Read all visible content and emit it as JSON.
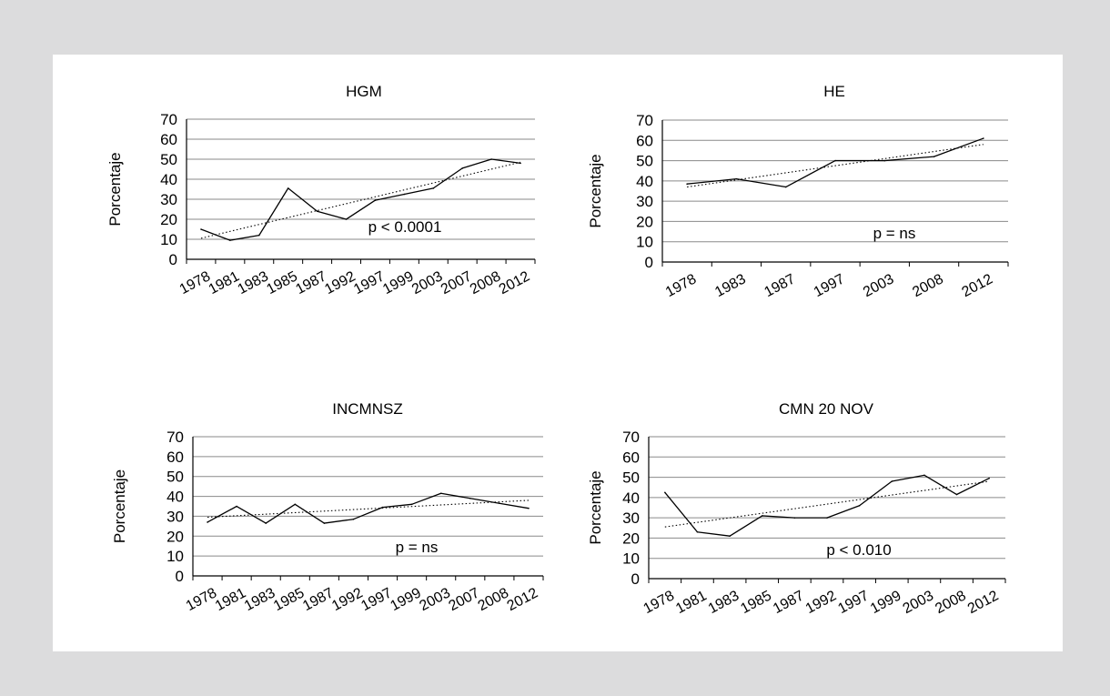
{
  "chart_data": [
    {
      "type": "line",
      "title": "HGM",
      "ylabel": "Porcentaje",
      "xlabel": "",
      "ylim": [
        0,
        70
      ],
      "yticks": [
        0,
        10,
        20,
        30,
        40,
        50,
        60,
        70
      ],
      "categories": [
        "1978",
        "1981",
        "1983",
        "1985",
        "1987",
        "1992",
        "1997",
        "1999",
        "2003",
        "2007",
        "2008",
        "2012"
      ],
      "values": [
        15,
        9.5,
        12,
        35.5,
        24,
        20,
        29.5,
        32.5,
        35.5,
        45.5,
        50,
        48
      ],
      "trendline": [
        10.5,
        48.5
      ],
      "annotation": "p < 0.0001",
      "grid": true
    },
    {
      "type": "line",
      "title": "HE",
      "ylabel": "Porcentaje",
      "xlabel": "",
      "ylim": [
        0,
        70
      ],
      "yticks": [
        0,
        10,
        20,
        30,
        40,
        50,
        60,
        70
      ],
      "categories": [
        "1978",
        "1983",
        "1987",
        "1997",
        "2003",
        "2008",
        "2012"
      ],
      "values": [
        38.5,
        41,
        37,
        50,
        50,
        52,
        61
      ],
      "trendline": [
        37,
        58
      ],
      "annotation": "p = ns",
      "grid": true
    },
    {
      "type": "line",
      "title": "INCMNSZ",
      "ylabel": "Porcentaje",
      "xlabel": "",
      "ylim": [
        0,
        70
      ],
      "yticks": [
        0,
        10,
        20,
        30,
        40,
        50,
        60,
        70
      ],
      "categories": [
        "1978",
        "1981",
        "1983",
        "1985",
        "1987",
        "1992",
        "1997",
        "1999",
        "2003",
        "2007",
        "2008",
        "2012"
      ],
      "values": [
        27,
        35,
        26.5,
        36,
        26.5,
        28.5,
        34.5,
        36,
        41.5,
        39,
        36.5,
        34
      ],
      "trendline": [
        29.5,
        38
      ],
      "annotation": "p = ns",
      "grid": true
    },
    {
      "type": "line",
      "title": "CMN 20 NOV",
      "ylabel": "Porcentaje",
      "xlabel": "",
      "ylim": [
        0,
        70
      ],
      "yticks": [
        0,
        10,
        20,
        30,
        40,
        50,
        60,
        70
      ],
      "categories": [
        "1978",
        "1981",
        "1983",
        "1985",
        "1987",
        "1992",
        "1997",
        "1999",
        "2003",
        "2008",
        "2012"
      ],
      "values": [
        42.5,
        23,
        21,
        31,
        30,
        30,
        36,
        48,
        51,
        41.5,
        49.5
      ],
      "trendline": [
        25.5,
        48
      ],
      "annotation": "p < 0.010",
      "grid": true
    }
  ]
}
